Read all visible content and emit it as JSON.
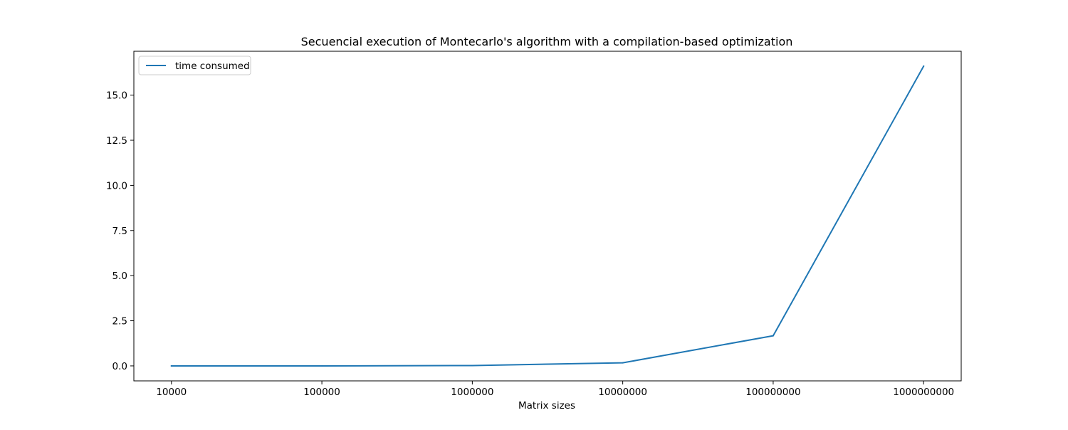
{
  "chart_data": {
    "type": "line",
    "title": "Secuencial execution of Montecarlo's algorithm with a compilation-based optimization",
    "xlabel": "Matrix sizes",
    "ylabel": "",
    "categories": [
      "10000",
      "100000",
      "1000000",
      "10000000",
      "100000000",
      "1000000000"
    ],
    "series": [
      {
        "name": "time consumed",
        "color": "#1f77b4",
        "values": [
          0.0,
          0.0,
          0.02,
          0.17,
          1.67,
          16.6
        ]
      }
    ],
    "yticks": [
      0.0,
      2.5,
      5.0,
      7.5,
      10.0,
      12.5,
      15.0
    ],
    "ytick_labels": [
      "0.0",
      "2.5",
      "5.0",
      "7.5",
      "10.0",
      "12.5",
      "15.0"
    ],
    "ylim": [
      -0.83,
      17.43
    ],
    "grid": false,
    "legend": "top-left"
  }
}
